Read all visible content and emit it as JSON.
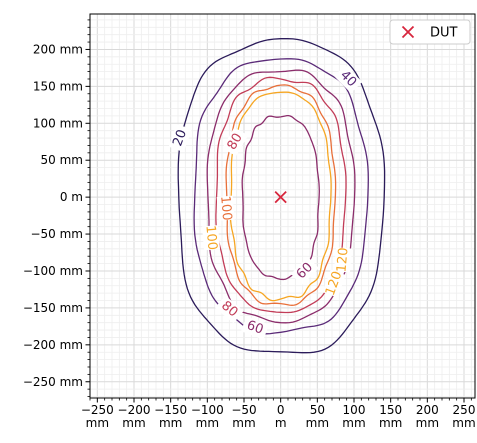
{
  "chart_data": {
    "type": "contour",
    "title": "",
    "xlabel": "",
    "ylabel": "",
    "xlim": [
      -260,
      265
    ],
    "ylim": [
      -272,
      248
    ],
    "grid": true,
    "legend_position": "top-right",
    "x_ticks": [
      {
        "value": -250,
        "label": "−250 mm"
      },
      {
        "value": -200,
        "label": "−200 mm"
      },
      {
        "value": -150,
        "label": "−150 mm"
      },
      {
        "value": -100,
        "label": "−100 mm"
      },
      {
        "value": -50,
        "label": "−50 mm"
      },
      {
        "value": 0,
        "label": "0 m"
      },
      {
        "value": 50,
        "label": "50 mm"
      },
      {
        "value": 100,
        "label": "100 mm"
      },
      {
        "value": 150,
        "label": "150 mm"
      },
      {
        "value": 200,
        "label": "200 mm"
      },
      {
        "value": 250,
        "label": "250 mm"
      }
    ],
    "y_ticks": [
      {
        "value": 200,
        "label": "200 mm"
      },
      {
        "value": 150,
        "label": "150 mm"
      },
      {
        "value": 100,
        "label": "100 mm"
      },
      {
        "value": 50,
        "label": "50 mm"
      },
      {
        "value": 0,
        "label": "0 m"
      },
      {
        "value": -50,
        "label": "−50 mm"
      },
      {
        "value": -100,
        "label": "−100 mm"
      },
      {
        "value": -150,
        "label": "−150 mm"
      },
      {
        "value": -200,
        "label": "−200 mm"
      },
      {
        "value": -250,
        "label": "−250 mm"
      }
    ],
    "contours": [
      {
        "level": 20,
        "label": "20",
        "color": "#2b1b5a",
        "rx": 140,
        "ry": 212,
        "cx": 0,
        "cy": 0
      },
      {
        "level": 40,
        "label": "40",
        "color": "#5a2a78",
        "rx": 118,
        "ry": 185,
        "cx": 0,
        "cy": 2
      },
      {
        "level": 60,
        "label": "60",
        "color": "#8b2d6b",
        "rx": 100,
        "ry": 170,
        "cx": 0,
        "cy": 2
      },
      {
        "level": 80,
        "label": "80",
        "color": "#c23d58",
        "rx": 88,
        "ry": 158,
        "cx": 0,
        "cy": 2
      },
      {
        "level": 100,
        "label": "100",
        "color": "#e8703a",
        "rx": 74,
        "ry": 148,
        "cx": 0,
        "cy": 2
      },
      {
        "level": 120,
        "label": "120",
        "color": "#f6a623",
        "rx": 68,
        "ry": 140,
        "cx": 0,
        "cy": 2
      },
      {
        "level": 60,
        "label": "60",
        "color": "#8b2d6b",
        "rx": 52,
        "ry": 110,
        "cx": 0,
        "cy": 0
      }
    ],
    "contour_labels": [
      {
        "text": "20",
        "x": -137,
        "y": 80,
        "color": "#2b1b5a",
        "angle": -70
      },
      {
        "text": "40",
        "x": 92,
        "y": 160,
        "color": "#5a2a78",
        "angle": 45
      },
      {
        "text": "80",
        "x": -62,
        "y": 75,
        "color": "#c23d58",
        "angle": -60
      },
      {
        "text": "100",
        "x": -75,
        "y": -15,
        "color": "#e8703a",
        "angle": 85
      },
      {
        "text": "100",
        "x": -95,
        "y": -55,
        "color": "#f6a623",
        "angle": 85
      },
      {
        "text": "120",
        "x": 85,
        "y": -85,
        "color": "#f6a623",
        "angle": -85
      },
      {
        "text": "120",
        "x": 73,
        "y": -117,
        "color": "#f6a623",
        "angle": -70
      },
      {
        "text": "60",
        "x": 33,
        "y": -100,
        "color": "#8b2d6b",
        "angle": -45
      },
      {
        "text": "80",
        "x": -70,
        "y": -152,
        "color": "#c23d58",
        "angle": 40
      },
      {
        "text": "60",
        "x": -35,
        "y": -177,
        "color": "#8b2d6b",
        "angle": 20
      }
    ],
    "series": [
      {
        "name": "DUT",
        "marker": "x",
        "color": "#d7263d",
        "points": [
          {
            "x": 0,
            "y": 0
          }
        ]
      }
    ]
  }
}
